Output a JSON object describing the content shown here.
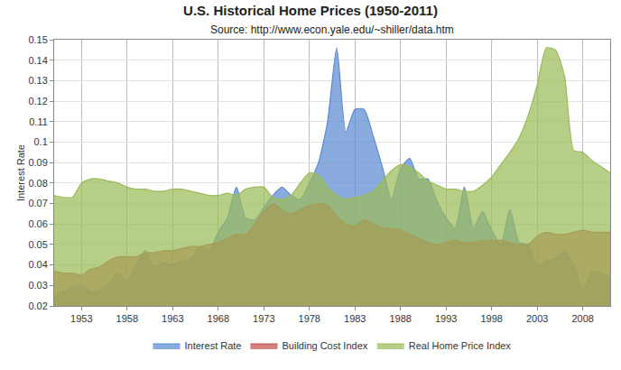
{
  "chart_data": {
    "type": "area",
    "title": "U.S. Historical Home Prices (1950-2011)",
    "subtitle": "Source: http://www.econ.yale.edu/~shiller/data.htm",
    "y_label": "Interest Rate",
    "x": [
      1950,
      1951,
      1952,
      1953,
      1954,
      1955,
      1956,
      1957,
      1958,
      1959,
      1960,
      1961,
      1962,
      1963,
      1964,
      1965,
      1966,
      1967,
      1968,
      1969,
      1970,
      1971,
      1972,
      1973,
      1974,
      1975,
      1976,
      1977,
      1978,
      1979,
      1980,
      1981,
      1982,
      1983,
      1984,
      1985,
      1986,
      1987,
      1988,
      1989,
      1990,
      1991,
      1992,
      1993,
      1994,
      1995,
      1996,
      1997,
      1998,
      1999,
      2000,
      2001,
      2002,
      2003,
      2004,
      2005,
      2006,
      2007,
      2008,
      2009,
      2010,
      2011
    ],
    "series": [
      {
        "name": "Interest Rate",
        "color": "#5b8bd0",
        "values": [
          0.025,
          0.027,
          0.029,
          0.03,
          0.027,
          0.028,
          0.031,
          0.036,
          0.032,
          0.04,
          0.047,
          0.039,
          0.041,
          0.04,
          0.042,
          0.043,
          0.049,
          0.047,
          0.056,
          0.063,
          0.078,
          0.063,
          0.062,
          0.068,
          0.074,
          0.078,
          0.074,
          0.072,
          0.08,
          0.09,
          0.11,
          0.146,
          0.105,
          0.116,
          0.116,
          0.103,
          0.088,
          0.072,
          0.087,
          0.092,
          0.082,
          0.082,
          0.071,
          0.063,
          0.058,
          0.078,
          0.058,
          0.066,
          0.057,
          0.05,
          0.067,
          0.051,
          0.05,
          0.04,
          0.042,
          0.043,
          0.047,
          0.04,
          0.027,
          0.037,
          0.036,
          0.034
        ]
      },
      {
        "name": "Building Cost Index",
        "color": "#c0504d",
        "values": [
          0.037,
          0.036,
          0.036,
          0.035,
          0.038,
          0.039,
          0.042,
          0.044,
          0.044,
          0.044,
          0.046,
          0.046,
          0.047,
          0.047,
          0.048,
          0.049,
          0.049,
          0.05,
          0.051,
          0.053,
          0.055,
          0.055,
          0.06,
          0.066,
          0.07,
          0.067,
          0.065,
          0.067,
          0.069,
          0.07,
          0.069,
          0.064,
          0.06,
          0.059,
          0.062,
          0.06,
          0.058,
          0.058,
          0.057,
          0.055,
          0.053,
          0.051,
          0.05,
          0.051,
          0.052,
          0.051,
          0.051,
          0.052,
          0.052,
          0.052,
          0.051,
          0.05,
          0.05,
          0.054,
          0.056,
          0.055,
          0.055,
          0.056,
          0.057,
          0.056,
          0.056,
          0.056
        ]
      },
      {
        "name": "Real Home Price Index",
        "color": "#9bbb59",
        "values": [
          0.074,
          0.073,
          0.073,
          0.08,
          0.082,
          0.082,
          0.081,
          0.08,
          0.078,
          0.077,
          0.077,
          0.076,
          0.076,
          0.077,
          0.077,
          0.076,
          0.075,
          0.074,
          0.074,
          0.075,
          0.074,
          0.077,
          0.078,
          0.078,
          0.073,
          0.072,
          0.074,
          0.08,
          0.085,
          0.084,
          0.078,
          0.074,
          0.072,
          0.073,
          0.074,
          0.076,
          0.081,
          0.086,
          0.089,
          0.088,
          0.085,
          0.081,
          0.079,
          0.077,
          0.077,
          0.076,
          0.076,
          0.079,
          0.083,
          0.089,
          0.095,
          0.102,
          0.113,
          0.128,
          0.146,
          0.145,
          0.132,
          0.096,
          0.095,
          0.091,
          0.088,
          0.085
        ]
      }
    ],
    "xlim": [
      1950,
      2011
    ],
    "xticks": [
      1953,
      1958,
      1963,
      1968,
      1973,
      1978,
      1983,
      1988,
      1993,
      1998,
      2003,
      2008
    ],
    "ylim": [
      0.02,
      0.15
    ],
    "yticks": [
      0.02,
      0.03,
      0.04,
      0.05,
      0.06,
      0.07,
      0.08,
      0.09,
      0.1,
      0.11,
      0.12,
      0.13,
      0.14,
      0.15
    ],
    "grid": true,
    "legend": "bottom"
  }
}
